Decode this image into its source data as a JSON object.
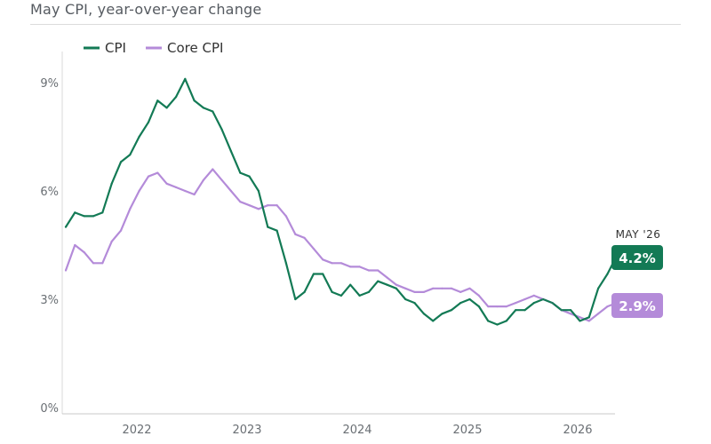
{
  "title": "May CPI, year-over-year change",
  "chart_data": {
    "type": "line",
    "title": "May CPI, year-over-year change",
    "xlabel": "",
    "ylabel": "",
    "x_start": "2021-05",
    "x_end": "2026-05",
    "x_ticks": [
      "2022",
      "2023",
      "2024",
      "2025",
      "2026"
    ],
    "y_ticks": [
      "0%",
      "3%",
      "6%",
      "9%"
    ],
    "ylim": [
      0,
      10
    ],
    "grid": false,
    "legend_position": "top-left",
    "series": [
      {
        "name": "CPI",
        "color": "#137a55",
        "values": [
          5.0,
          5.4,
          5.3,
          5.3,
          5.4,
          6.2,
          6.8,
          7.0,
          7.5,
          7.9,
          8.5,
          8.3,
          8.6,
          9.1,
          8.5,
          8.3,
          8.2,
          7.7,
          7.1,
          6.5,
          6.4,
          6.0,
          5.0,
          4.9,
          4.0,
          3.0,
          3.2,
          3.7,
          3.7,
          3.2,
          3.1,
          3.4,
          3.1,
          3.2,
          3.5,
          3.4,
          3.3,
          3.0,
          2.9,
          2.6,
          2.4,
          2.6,
          2.7,
          2.9,
          3.0,
          2.8,
          2.4,
          2.3,
          2.4,
          2.7,
          2.7,
          2.9,
          3.0,
          2.9,
          2.7,
          2.7,
          2.4,
          2.5,
          3.3,
          3.7,
          4.2
        ]
      },
      {
        "name": "Core CPI",
        "color": "#b48bd9",
        "values": [
          3.8,
          4.5,
          4.3,
          4.0,
          4.0,
          4.6,
          4.9,
          5.5,
          6.0,
          6.4,
          6.5,
          6.2,
          6.1,
          6.0,
          5.9,
          6.3,
          6.6,
          6.3,
          6.0,
          5.7,
          5.6,
          5.5,
          5.6,
          5.6,
          5.3,
          4.8,
          4.7,
          4.4,
          4.1,
          4.0,
          4.0,
          3.9,
          3.9,
          3.8,
          3.8,
          3.6,
          3.4,
          3.3,
          3.2,
          3.2,
          3.3,
          3.3,
          3.3,
          3.2,
          3.3,
          3.1,
          2.8,
          2.8,
          2.8,
          2.9,
          3.0,
          3.1,
          3.0,
          2.9,
          2.7,
          2.6,
          2.5,
          2.4,
          2.6,
          2.8,
          2.9
        ]
      }
    ],
    "annotations": {
      "period_label": "MAY '26",
      "cpi_value_label": "4.2%",
      "core_value_label": "2.9%"
    }
  },
  "legend": {
    "cpi_label": "CPI",
    "core_label": "Core CPI"
  }
}
